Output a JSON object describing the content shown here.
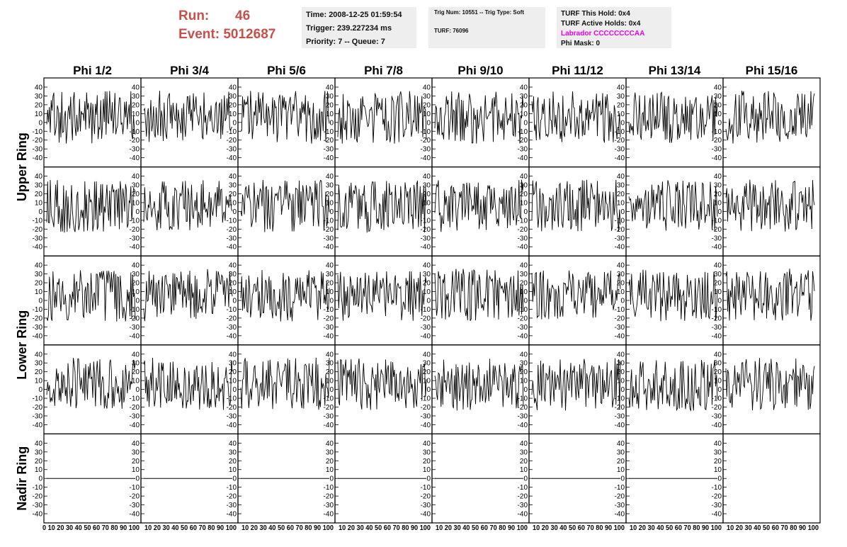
{
  "header": {
    "run_label": "Run:",
    "run_value": "46",
    "event_label": "Event:",
    "event_value": "5012687"
  },
  "info_time": {
    "time": "Time: 2008-12-25 01:59:54",
    "trigger": "Trigger: 239.227234 ms",
    "priority": "Priority: 7 -- Queue: 7"
  },
  "info_trig": {
    "trig": "Trig Num: 10551 -- Trig Type: Soft",
    "turf": "TURF: 76096"
  },
  "info_turf": {
    "hold": "TURF This Hold: 0x4",
    "active": "TURF Active Holds: 0x4",
    "labrador": "Labrador CCCCCCCCAA",
    "phimask": "Phi Mask: 0"
  },
  "colors": {
    "run_text": "#c9504a",
    "labrador_text": "#ee00ee",
    "info_bg": "#eeeeee",
    "trace": "#000000"
  },
  "chart_data": {
    "type": "line",
    "columns": [
      "Phi 1/2",
      "Phi 3/4",
      "Phi 5/6",
      "Phi 7/8",
      "Phi 9/10",
      "Phi 11/12",
      "Phi 13/14",
      "Phi 15/16"
    ],
    "row_labels": [
      "Upper Ring",
      "Lower Ring",
      "Nadir Ring"
    ],
    "rows": [
      "upper-1",
      "upper-2",
      "lower-1",
      "lower-2",
      "nadir"
    ],
    "y_ticks": [
      "40",
      "30",
      "20",
      "10",
      "0",
      "-10",
      "-20",
      "-30",
      "-40"
    ],
    "ylim": [
      -48,
      48
    ],
    "xlim": [
      0,
      100
    ],
    "x_ticks": [
      "0",
      "10",
      "20",
      "30",
      "40",
      "50",
      "60",
      "70",
      "80",
      "90",
      "100"
    ],
    "x_tick_text_first": "0 10 20 30 40 50 60 70 80 90 100",
    "x_tick_text": "10 20 30 40 50 60 70 80 90 100",
    "samples_per_trace": 100,
    "trace_mean": 6,
    "trace_amplitude": 30,
    "nadir_value": 0,
    "nadir_blank_columns": [
      7
    ]
  }
}
